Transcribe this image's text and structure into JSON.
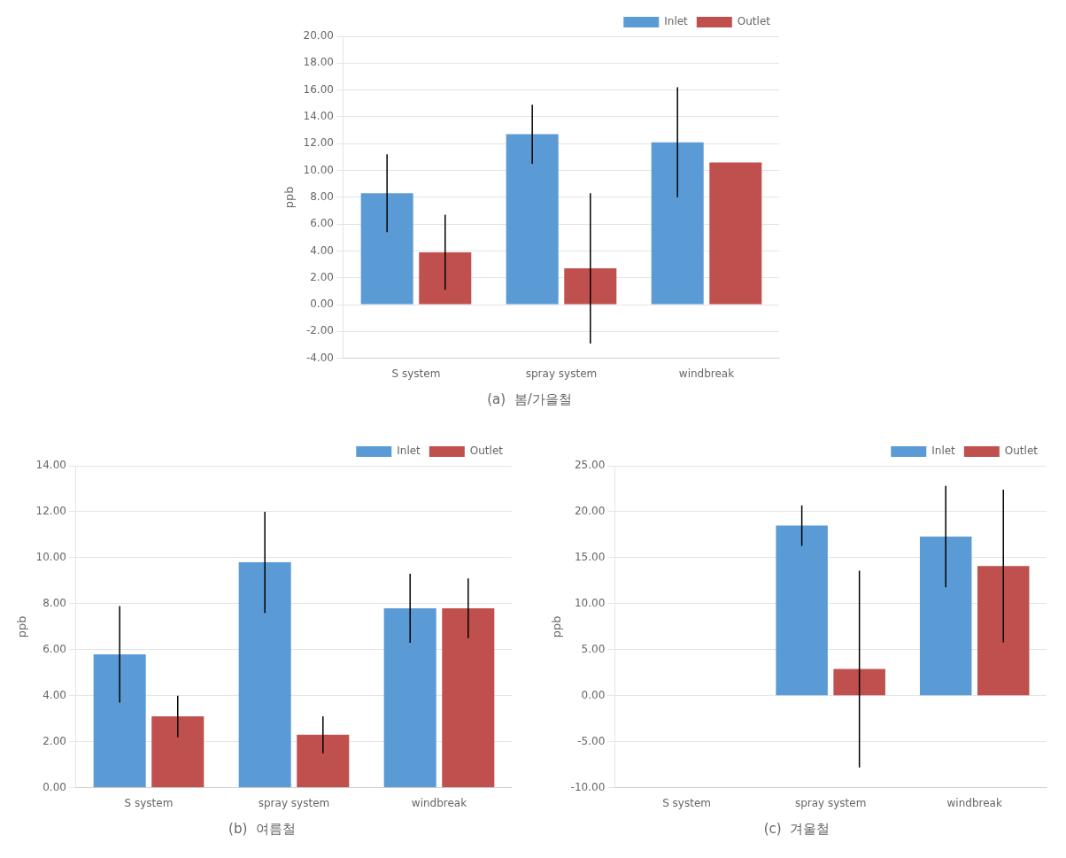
{
  "chart_data": [
    {
      "type": "bar",
      "title": "(a)  봄/가을철",
      "categories": [
        "S system",
        "spray system",
        "windbreak"
      ],
      "series": [
        {
          "name": "Inlet",
          "color": "#5B9BD5",
          "values": [
            8.3,
            12.7,
            12.1
          ],
          "errors": [
            2.9,
            2.2,
            4.1
          ]
        },
        {
          "name": "Outlet",
          "color": "#C0504D",
          "values": [
            3.9,
            2.7,
            10.6
          ],
          "errors": [
            2.8,
            5.6,
            0.0
          ]
        }
      ],
      "ylabel": "ppb",
      "ylim": [
        -4,
        20.0
      ],
      "yticks": [
        {
          "value": -4,
          "label": "-4.00"
        },
        {
          "value": -2,
          "label": "-2.00"
        },
        {
          "value": 0,
          "label": "0.00"
        },
        {
          "value": 2,
          "label": "2.00"
        },
        {
          "value": 4,
          "label": "4.00"
        },
        {
          "value": 6,
          "label": "6.00"
        },
        {
          "value": 8,
          "label": "8.00"
        },
        {
          "value": 10,
          "label": "10.00"
        },
        {
          "value": 12,
          "label": "12.00"
        },
        {
          "value": 14,
          "label": "14.00"
        },
        {
          "value": 16,
          "label": "16.00"
        },
        {
          "value": 18,
          "label": "18.00"
        },
        {
          "value": 20,
          "label": "20.00"
        }
      ],
      "grid": true,
      "legend": "upper right"
    },
    {
      "type": "bar",
      "title": "(b)  여름철",
      "categories": [
        "S system",
        "spray system",
        "windbreak"
      ],
      "series": [
        {
          "name": "Inlet",
          "color": "#5B9BD5",
          "values": [
            5.8,
            9.8,
            7.8
          ],
          "errors": [
            2.1,
            2.2,
            1.5
          ]
        },
        {
          "name": "Outlet",
          "color": "#C0504D",
          "values": [
            3.1,
            2.3,
            7.8
          ],
          "errors": [
            0.9,
            0.8,
            1.3
          ]
        }
      ],
      "ylabel": "ppb",
      "ylim": [
        0,
        14.0
      ],
      "yticks": [
        {
          "value": 0,
          "label": "0.00"
        },
        {
          "value": 2,
          "label": "2.00"
        },
        {
          "value": 4,
          "label": "4.00"
        },
        {
          "value": 6,
          "label": "6.00"
        },
        {
          "value": 8,
          "label": "8.00"
        },
        {
          "value": 10,
          "label": "10.00"
        },
        {
          "value": 12,
          "label": "12.00"
        },
        {
          "value": 14,
          "label": "14.00"
        }
      ],
      "grid": true,
      "legend": "upper right"
    },
    {
      "type": "bar",
      "title": "(c)  겨울철",
      "categories": [
        "S system",
        "spray system",
        "windbreak"
      ],
      "series": [
        {
          "name": "Inlet",
          "color": "#5B9BD5",
          "values": [
            0.0,
            18.5,
            17.3
          ],
          "errors": [
            0.0,
            2.2,
            5.5
          ]
        },
        {
          "name": "Outlet",
          "color": "#C0504D",
          "values": [
            0.0,
            2.9,
            14.1
          ],
          "errors": [
            0.0,
            10.7,
            8.3
          ]
        }
      ],
      "ylabel": "ppb",
      "ylim": [
        -10,
        25.0
      ],
      "yticks": [
        {
          "value": -10,
          "label": "-10.00"
        },
        {
          "value": -5,
          "label": "-5.00"
        },
        {
          "value": 0,
          "label": "0.00"
        },
        {
          "value": 5,
          "label": "5.00"
        },
        {
          "value": 10,
          "label": "10.00"
        },
        {
          "value": 15,
          "label": "15.00"
        },
        {
          "value": 20,
          "label": "20.00"
        },
        {
          "value": 25,
          "label": "25.00"
        }
      ],
      "grid": true,
      "legend": "upper right"
    }
  ]
}
